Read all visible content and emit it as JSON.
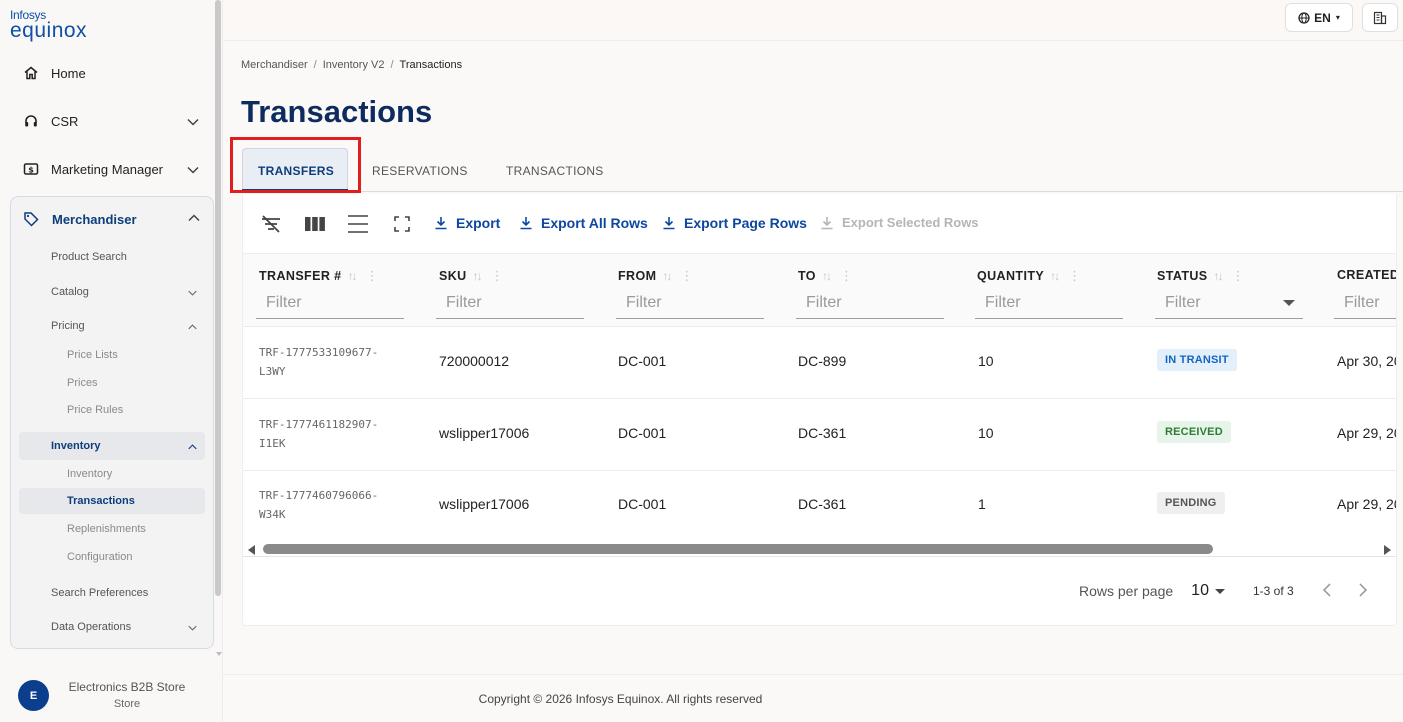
{
  "brand": {
    "line1": "Infosys",
    "line2": "equinox"
  },
  "sidebar": {
    "items": [
      {
        "label": "Home",
        "icon": "home-icon"
      },
      {
        "label": "CSR",
        "icon": "headset-icon"
      },
      {
        "label": "Marketing Manager",
        "icon": "dollar-icon"
      }
    ],
    "merchandiser": {
      "label": "Merchandiser",
      "icon": "tag-icon",
      "children": {
        "product_search": "Product Search",
        "catalog": "Catalog",
        "pricing": "Pricing",
        "price_lists": "Price Lists",
        "prices": "Prices",
        "price_rules": "Price Rules",
        "inventory": "Inventory",
        "inventory_sub": "Inventory",
        "transactions": "Transactions",
        "replenishments": "Replenishments",
        "configuration": "Configuration",
        "search_preferences": "Search Preferences",
        "data_operations": "Data Operations"
      }
    },
    "store": {
      "initial": "E",
      "name": "Electronics B2B Store",
      "type": "Store"
    }
  },
  "topbar": {
    "language": "EN"
  },
  "breadcrumb": [
    "Merchandiser",
    "Inventory V2",
    "Transactions"
  ],
  "page_title": "Transactions",
  "tabs": [
    {
      "label": "TRANSFERS",
      "active": true
    },
    {
      "label": "RESERVATIONS",
      "active": false
    },
    {
      "label": "TRANSACTIONS",
      "active": false
    }
  ],
  "toolbar": {
    "export": "Export",
    "export_all": "Export All Rows",
    "export_page": "Export Page Rows",
    "export_selected": "Export Selected Rows"
  },
  "table": {
    "columns": [
      "TRANSFER #",
      "SKU",
      "FROM",
      "TO",
      "QUANTITY",
      "STATUS",
      "CREATED"
    ],
    "filter_placeholder": "Filter",
    "rows": [
      {
        "transfer": "TRF-1777533109677-L3WY",
        "sku": "720000012",
        "from": "DC-001",
        "to": "DC-899",
        "quantity": "10",
        "status": "IN TRANSIT",
        "created": "Apr 30, 20"
      },
      {
        "transfer": "TRF-1777461182907-I1EK",
        "sku": "wslipper17006",
        "from": "DC-001",
        "to": "DC-361",
        "quantity": "10",
        "status": "RECEIVED",
        "created": "Apr 29, 20"
      },
      {
        "transfer": "TRF-1777460796066-W34K",
        "sku": "wslipper17006",
        "from": "DC-001",
        "to": "DC-361",
        "quantity": "1",
        "status": "PENDING",
        "created": "Apr 29, 20"
      }
    ],
    "status_colors": {
      "IN TRANSIT": {
        "bg": "#e3f0fb",
        "fg": "#1565c0"
      },
      "RECEIVED": {
        "bg": "#e6f4ea",
        "fg": "#2e7d32"
      },
      "PENDING": {
        "bg": "#efefef",
        "fg": "#555555"
      }
    }
  },
  "pagination": {
    "rows_per_page_label": "Rows per page",
    "rows_per_page": "10",
    "range": "1-3 of 3"
  },
  "footer": {
    "copyright": "Copyright © 2026 Infosys Equinox. All rights reserved"
  }
}
